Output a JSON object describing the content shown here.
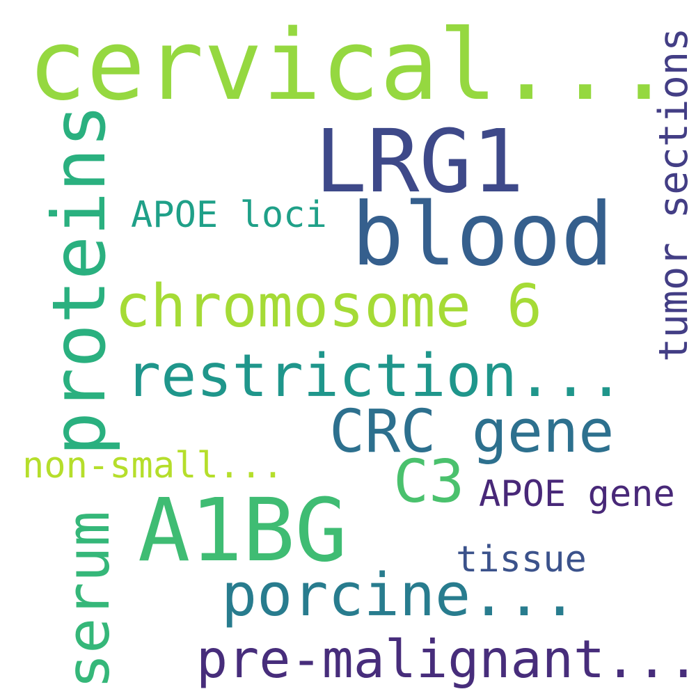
{
  "words": {
    "cervical": {
      "text": "cervical...",
      "color": "#95d840"
    },
    "lrg1": {
      "text": "LRG1",
      "color": "#3e4989"
    },
    "blood": {
      "text": "blood",
      "color": "#355f8d"
    },
    "proteins": {
      "text": "proteins",
      "color": "#2ab07f"
    },
    "apoe_loci": {
      "text": "APOE loci",
      "color": "#1fa088"
    },
    "chromosome_6": {
      "text": "chromosome 6",
      "color": "#a5db36"
    },
    "tumor_sections": {
      "text": "tumor sections",
      "color": "#433e85"
    },
    "restriction": {
      "text": "restriction...",
      "color": "#1f968b"
    },
    "crc_gene": {
      "text": "CRC gene",
      "color": "#2d708e"
    },
    "non_small": {
      "text": "non-small...",
      "color": "#b5de2b"
    },
    "c3": {
      "text": "C3",
      "color": "#4ac16d"
    },
    "apoe_gene": {
      "text": "APOE gene",
      "color": "#482878"
    },
    "serum": {
      "text": "serum",
      "color": "#35b779"
    },
    "a1bg": {
      "text": "A1BG",
      "color": "#3fbc73"
    },
    "tissue": {
      "text": "tissue",
      "color": "#3b528b"
    },
    "porcine": {
      "text": "porcine...",
      "color": "#287c8e"
    },
    "pre_malignant": {
      "text": "pre-malignant...",
      "color": "#472d7b"
    }
  }
}
